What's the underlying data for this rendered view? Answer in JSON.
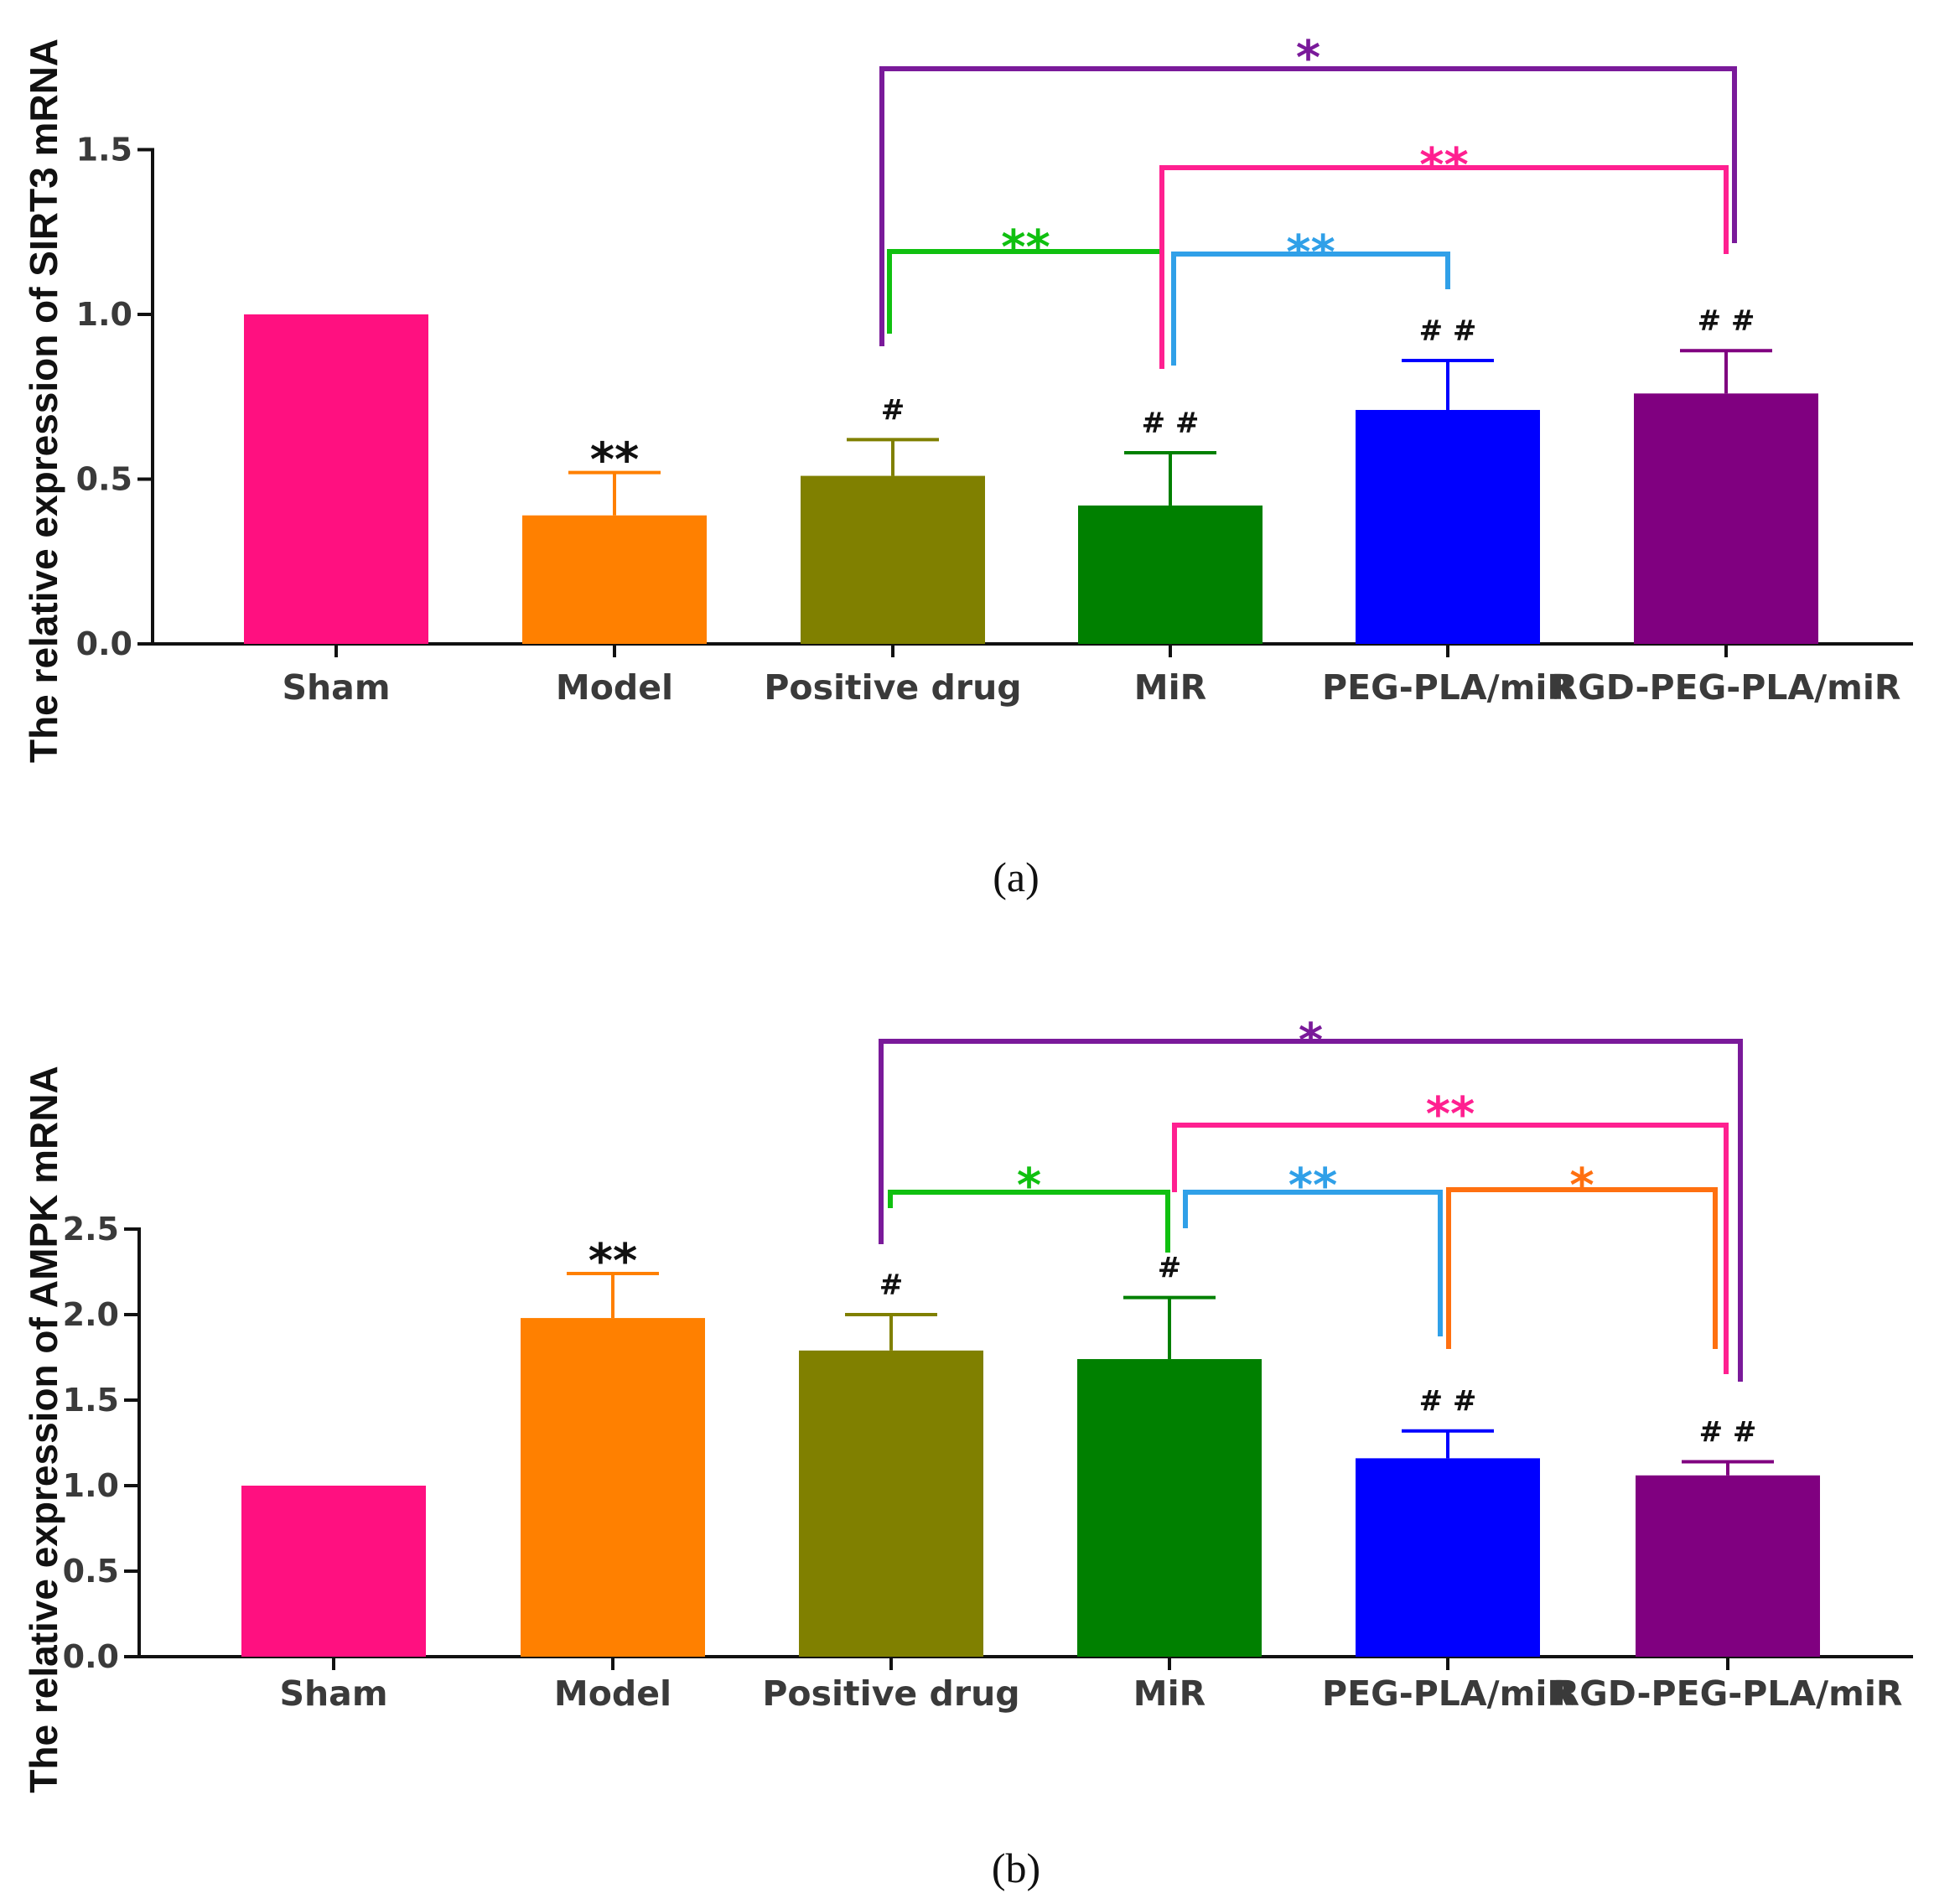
{
  "chart_data": [
    {
      "panel": "a",
      "caption": "(a)",
      "type": "bar",
      "ylabel": "The relative expression of SIRT3 mRNA",
      "ylim": [
        0,
        1.5
      ],
      "yticks": [
        "0.0",
        "0.5",
        "1.0",
        "1.5"
      ],
      "categories": [
        "Sham",
        "Model",
        "Positive drug",
        "MiR",
        "PEG-PLA/miR",
        "RGD-PEG-PLA/miR"
      ],
      "values": [
        1.0,
        0.39,
        0.51,
        0.42,
        0.71,
        0.76
      ],
      "errors": [
        0,
        0.13,
        0.11,
        0.16,
        0.15,
        0.13
      ],
      "colors": [
        "#ff1080",
        "#ff8000",
        "#808000",
        "#008000",
        "#0000ff",
        "#800080"
      ],
      "bar_annotations": [
        "",
        "**",
        "#",
        "# #",
        "# #",
        "# #"
      ],
      "annotation_colors": [
        "#111111",
        "#111111",
        "#111111",
        "#111111",
        "#111111",
        "#111111"
      ],
      "brackets": [
        {
          "from": "Positive drug",
          "to": "MiR",
          "label": "**",
          "color": "#10c010"
        },
        {
          "from": "MiR",
          "to": "PEG-PLA/miR",
          "label": "**",
          "color": "#30a0e8"
        },
        {
          "from": "MiR",
          "to": "RGD-PEG-PLA/miR",
          "label": "**",
          "color": "#ff2090"
        },
        {
          "from": "Positive drug",
          "to": "RGD-PEG-PLA/miR",
          "label": "*",
          "color": "#7a1a9a"
        }
      ]
    },
    {
      "panel": "b",
      "caption": "(b)",
      "type": "bar",
      "ylabel": "The relative expression of AMPK mRNA",
      "ylim": [
        0,
        2.5
      ],
      "yticks": [
        "0.0",
        "0.5",
        "1.0",
        "1.5",
        "2.0",
        "2.5"
      ],
      "categories": [
        "Sham",
        "Model",
        "Positive drug",
        "MiR",
        "PEG-PLA/miR",
        "RGD-PEG-PLA/miR"
      ],
      "values": [
        1.0,
        1.98,
        1.79,
        1.74,
        1.16,
        1.06
      ],
      "errors": [
        0,
        0.26,
        0.21,
        0.36,
        0.16,
        0.08
      ],
      "colors": [
        "#ff1080",
        "#ff8000",
        "#808000",
        "#008000",
        "#0000ff",
        "#800080"
      ],
      "bar_annotations": [
        "",
        "**",
        "#",
        "#",
        "# #",
        "# #"
      ],
      "annotation_colors": [
        "#111111",
        "#111111",
        "#111111",
        "#111111",
        "#111111",
        "#111111"
      ],
      "brackets": [
        {
          "from": "Positive drug",
          "to": "MiR",
          "label": "*",
          "color": "#10c010"
        },
        {
          "from": "MiR",
          "to": "PEG-PLA/miR",
          "label": "**",
          "color": "#30a0e8"
        },
        {
          "from": "PEG-PLA/miR",
          "to": "RGD-PEG-PLA/miR",
          "label": "*",
          "color": "#ff7010"
        },
        {
          "from": "MiR",
          "to": "RGD-PEG-PLA/miR",
          "label": "**",
          "color": "#ff2090"
        },
        {
          "from": "Positive drug",
          "to": "RGD-PEG-PLA/miR",
          "label": "*",
          "color": "#7a1a9a"
        }
      ]
    }
  ]
}
